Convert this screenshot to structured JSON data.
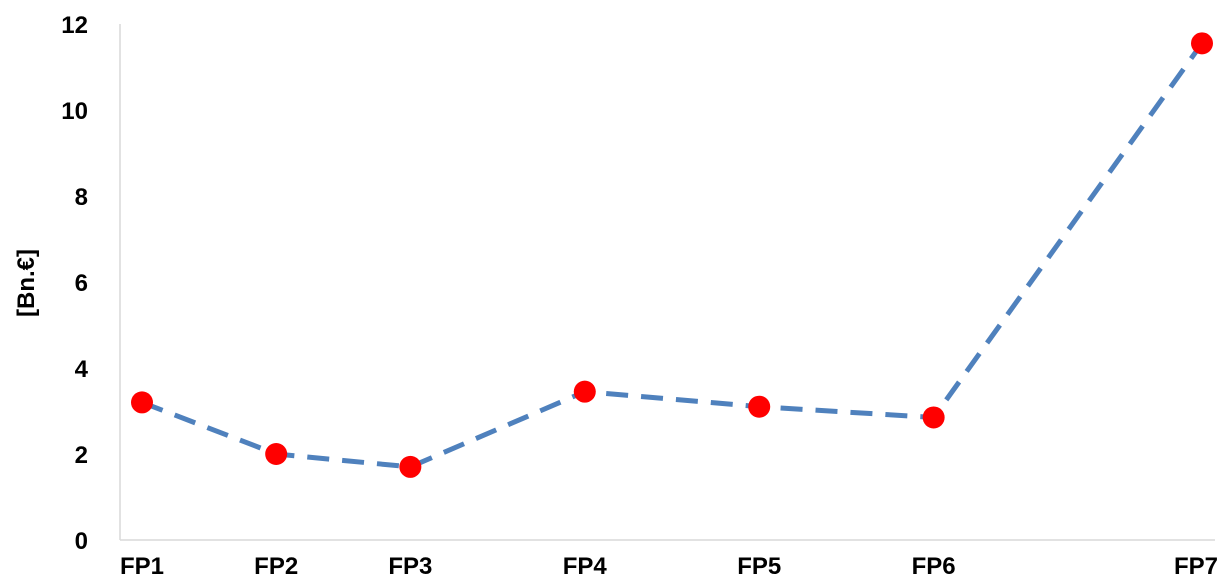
{
  "chart_data": {
    "type": "line",
    "title": "",
    "xlabel": "",
    "ylabel": "[Bn.€]",
    "categories": [
      "FP1",
      "FP2",
      "FP3",
      "FP4",
      "FP5",
      "FP6",
      "FP7"
    ],
    "x_positions": [
      1,
      2,
      3,
      4.3,
      5.6,
      6.9,
      8.9
    ],
    "series": [
      {
        "values": [
          3.2,
          2.0,
          1.7,
          3.45,
          3.1,
          2.85,
          11.55
        ]
      }
    ],
    "ylim": [
      0,
      12
    ],
    "yticks": [
      0,
      2,
      4,
      6,
      8,
      10,
      12
    ],
    "grid": false,
    "legend": "none",
    "colors": {
      "line": "#4f81bd",
      "marker": "#ff0000",
      "axis": "#d9d9d9",
      "text": "#000000"
    }
  }
}
